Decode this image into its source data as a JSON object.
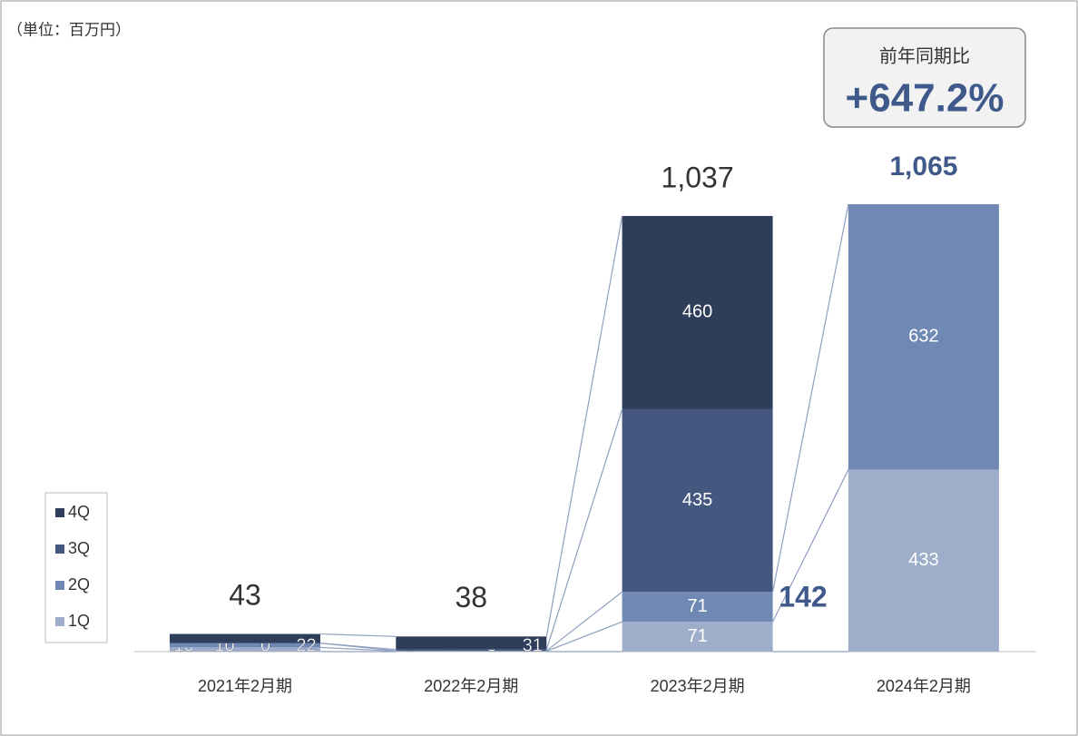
{
  "chart_data": {
    "type": "stacked_bar",
    "unit_note": "（単位：百万円）",
    "categories": [
      "2021年2月期",
      "2022年2月期",
      "2023年2月期",
      "2024年2月期"
    ],
    "series": [
      {
        "name": "1Q",
        "color": "#9dadca",
        "values": [
          10,
          1,
          71,
          433
        ]
      },
      {
        "name": "2Q",
        "color": "#6f88b4",
        "values": [
          10,
          1,
          71,
          632
        ]
      },
      {
        "name": "3Q",
        "color": "#44587f",
        "values": [
          0,
          3,
          435,
          null
        ]
      },
      {
        "name": "4Q",
        "color": "#2e3d59",
        "values": [
          22,
          31,
          460,
          null
        ]
      }
    ],
    "totals": {
      "values": [
        43,
        38,
        1037,
        1065
      ],
      "value_labels": [
        "43",
        "38",
        "1,037",
        "1,065"
      ]
    },
    "annotation": "142",
    "badge": {
      "title": "前年同期比",
      "value": "+647.2%"
    },
    "legend_position": "left"
  }
}
